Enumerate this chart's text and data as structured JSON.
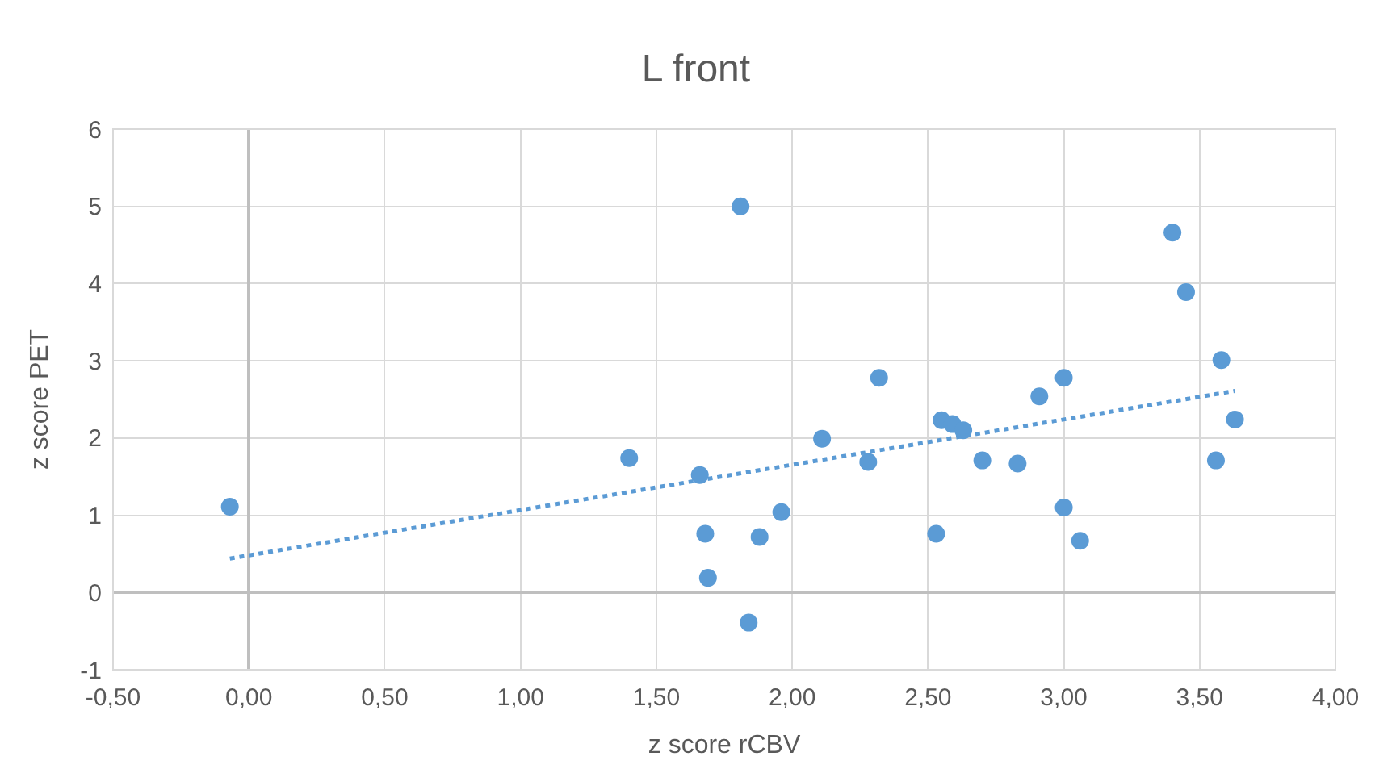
{
  "chart_data": {
    "type": "scatter",
    "title": "L front",
    "xlabel": "z score rCBV",
    "ylabel": "z score PET",
    "series": [
      {
        "color": "#5b9bd5",
        "marker": "circle",
        "x": [
          1.81,
          3.4,
          3.45,
          3.58,
          2.32,
          3.0,
          2.91,
          2.55,
          2.59,
          2.63,
          3.63,
          2.11,
          2.28,
          2.7,
          2.83,
          3.56,
          1.96,
          1.88,
          2.53,
          3.0,
          3.06,
          1.84,
          -0.07,
          1.4,
          1.66,
          1.68,
          1.69
        ],
        "values": [
          5.0,
          4.66,
          3.89,
          3.01,
          2.78,
          2.78,
          2.54,
          2.23,
          2.18,
          2.1,
          2.24,
          1.99,
          1.69,
          1.71,
          1.67,
          1.71,
          1.04,
          0.72,
          0.76,
          1.1,
          0.67,
          -0.39,
          1.11,
          1.74,
          1.52,
          0.76,
          0.19
        ]
      },
      {
        "type": "line",
        "color": "#5b9bd5",
        "line_style": "dotted",
        "marker": "none",
        "x": [
          -0.07,
          3.63
        ],
        "values": [
          0.44,
          2.61
        ]
      }
    ],
    "xlim": [
      -0.5,
      4.0
    ],
    "xticks": [
      {
        "value": -0.5,
        "label": "-0,50"
      },
      {
        "value": 0,
        "label": "0,00"
      },
      {
        "value": 0.5,
        "label": "0,50"
      },
      {
        "value": 1.0,
        "label": "1,00"
      },
      {
        "value": 1.5,
        "label": "1,50"
      },
      {
        "value": 2.0,
        "label": "2,00"
      },
      {
        "value": 2.5,
        "label": "2,50"
      },
      {
        "value": 3.0,
        "label": "3,00"
      },
      {
        "value": 3.5,
        "label": "3,50"
      },
      {
        "value": 4.0,
        "label": "4,00"
      }
    ],
    "ylim": [
      -1,
      6
    ],
    "yticks": [
      -1,
      0,
      1,
      2,
      3,
      4,
      5,
      6
    ],
    "grid": true
  }
}
